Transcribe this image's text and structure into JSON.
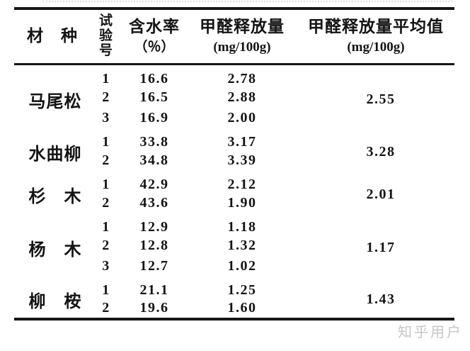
{
  "page": {
    "background_color": "#ffffff",
    "ink_color": "#141414",
    "watermark_text": "知乎用户",
    "watermark_color": "#c7c7c7"
  },
  "table": {
    "headers": {
      "material": "材　种",
      "test_no": "试验号",
      "moisture": "含水率",
      "moisture_unit": "（％）",
      "release": "甲醛释放量",
      "release_unit": "(mg/100g)",
      "average": "甲醛释放量平均值",
      "average_unit": "(mg/100g)"
    },
    "groups": [
      {
        "material": "马尾松",
        "average": "2.55",
        "rows": [
          {
            "no": "1",
            "moisture": "16.6",
            "release": "2.78"
          },
          {
            "no": "2",
            "moisture": "16.5",
            "release": "2.88"
          },
          {
            "no": "3",
            "moisture": "16.9",
            "release": "2.00"
          }
        ]
      },
      {
        "material": "水曲柳",
        "average": "3.28",
        "rows": [
          {
            "no": "1",
            "moisture": "33.8",
            "release": "3.17"
          },
          {
            "no": "2",
            "moisture": "34.8",
            "release": "3.39"
          }
        ]
      },
      {
        "material": "杉　木",
        "average": "2.01",
        "rows": [
          {
            "no": "1",
            "moisture": "42.9",
            "release": "2.12"
          },
          {
            "no": "2",
            "moisture": "43.6",
            "release": "1.90"
          }
        ]
      },
      {
        "material": "杨　木",
        "average": "1.17",
        "rows": [
          {
            "no": "1",
            "moisture": "12.9",
            "release": "1.18"
          },
          {
            "no": "2",
            "moisture": "12.8",
            "release": "1.32"
          },
          {
            "no": "3",
            "moisture": "12.7",
            "release": "1.02"
          }
        ]
      },
      {
        "material": "柳　桉",
        "average": "1.43",
        "rows": [
          {
            "no": "1",
            "moisture": "21.1",
            "release": "1.25"
          },
          {
            "no": "2",
            "moisture": "19.6",
            "release": "1.60"
          }
        ]
      }
    ]
  }
}
